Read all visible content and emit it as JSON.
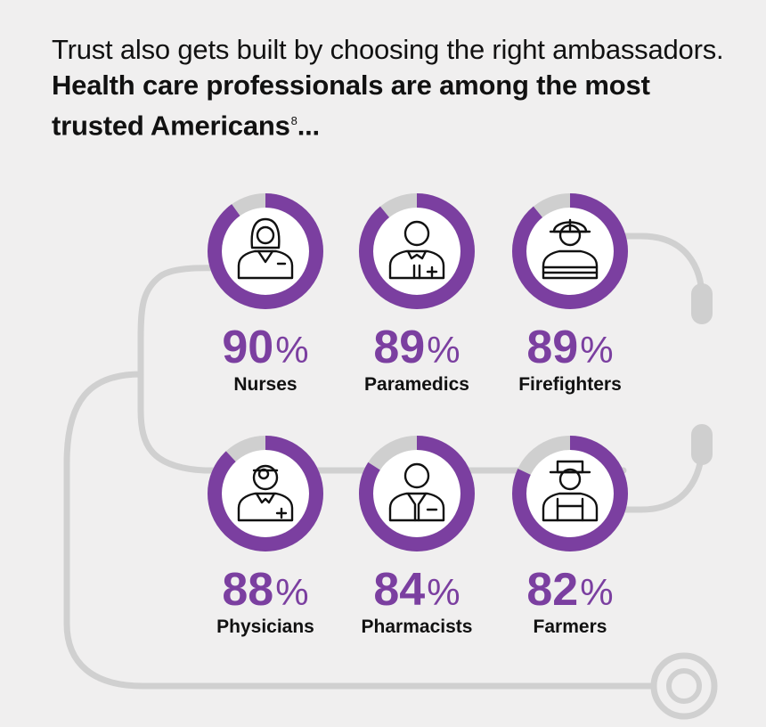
{
  "headline": {
    "plain": "Trust also gets built by choosing the right ambassadors.",
    "bold": "Health care professionals are among the most trusted Americans",
    "footnote": "8",
    "trail": "..."
  },
  "colors": {
    "accent": "#7b3fa0",
    "ring_track": "#cfcfcf",
    "tube": "#d0d0d0",
    "background": "#f0efef"
  },
  "chart_data": {
    "type": "donut",
    "unit": "%",
    "categories": [
      "Nurses",
      "Paramedics",
      "Firefighters",
      "Physicians",
      "Pharmacists",
      "Farmers"
    ],
    "values": [
      90,
      89,
      89,
      88,
      84,
      82
    ],
    "icons": [
      "nurse-icon",
      "paramedic-icon",
      "firefighter-icon",
      "physician-icon",
      "pharmacist-icon",
      "farmer-icon"
    ],
    "max": 100
  }
}
